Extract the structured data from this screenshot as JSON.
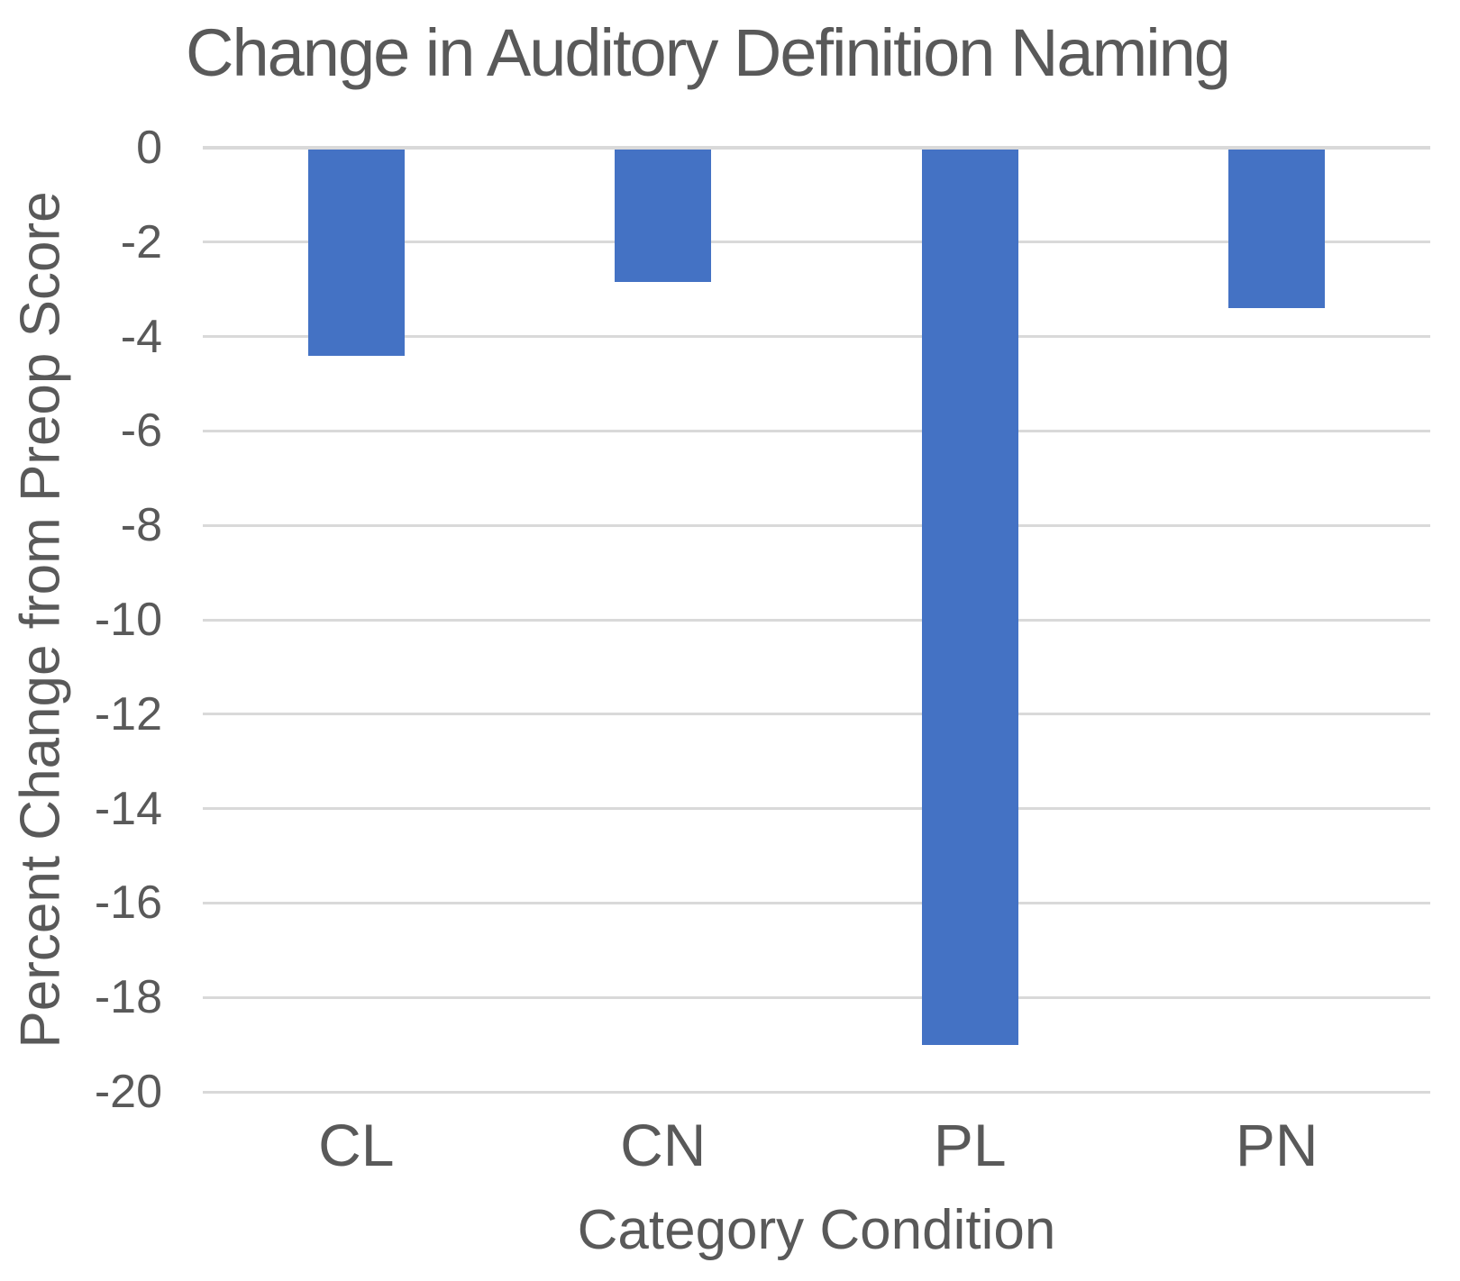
{
  "chart_data": {
    "type": "bar",
    "title": "Change in Auditory Definition Naming",
    "xlabel": "Category Condition",
    "ylabel": "Percent Change from Preop Score",
    "categories": [
      "CL",
      "CN",
      "PL",
      "PN"
    ],
    "values": [
      -4.4,
      -2.85,
      -19.0,
      -3.4
    ],
    "ylim": [
      -20,
      0
    ],
    "ytick_step": 2,
    "ytick_labels": [
      "0",
      "-2",
      "-4",
      "-6",
      "-8",
      "-10",
      "-12",
      "-14",
      "-16",
      "-18",
      "-20"
    ],
    "grid": true,
    "legend": false,
    "bar_color": "#4472C4",
    "text_color": "#595959",
    "gridline_color": "#D9D9D9"
  }
}
